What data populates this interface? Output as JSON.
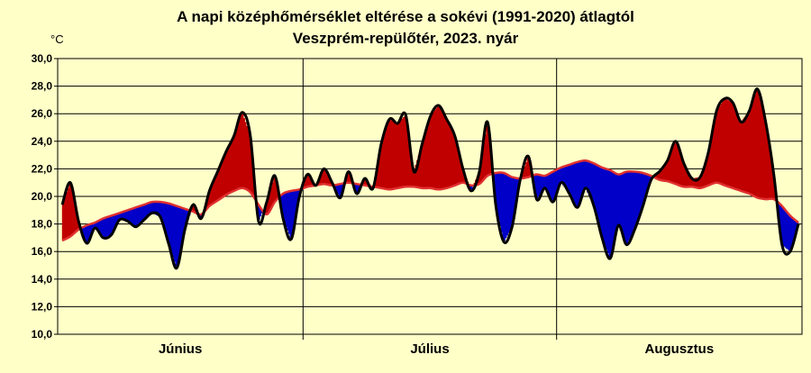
{
  "chart_data": {
    "type": "line",
    "title": "A napi középhőmérséklet eltérése a sokévi (1991-2020) átlagtól",
    "subtitle": "Veszprém-repülőtér,  2023. nyár",
    "ylabel": "°C",
    "ylim": [
      10,
      30
    ],
    "yticks": [
      "10,0",
      "12,0",
      "14,0",
      "16,0",
      "18,0",
      "20,0",
      "22,0",
      "24,0",
      "26,0",
      "28,0",
      "30,0"
    ],
    "months": [
      "Június",
      "Július",
      "Augusztus"
    ],
    "grid": true,
    "series": [
      {
        "values": [
          19.4,
          21.0,
          18.2,
          16.6,
          17.7,
          17.0,
          17.2,
          18.3,
          18.2,
          17.8,
          18.3,
          18.8,
          18.5,
          16.6,
          14.8,
          17.6,
          19.4,
          18.4,
          20.4,
          21.8,
          23.2,
          24.4,
          26.1,
          24.4,
          18.2,
          19.6,
          21.5,
          18.4,
          16.9,
          20.0,
          21.6,
          20.8,
          22.0,
          21.0,
          19.9,
          21.8,
          20.2,
          21.3,
          20.6,
          23.8,
          25.6,
          25.3,
          25.9,
          21.8,
          23.8,
          25.8,
          26.6,
          25.6,
          24.4,
          22.0,
          20.4,
          21.8,
          25.4,
          19.4,
          16.7,
          17.8,
          21.2,
          22.9,
          19.8,
          20.6,
          19.6,
          21.0,
          20.2,
          19.2,
          20.6,
          19.3,
          17.0,
          15.5,
          17.9,
          16.5,
          17.6,
          19.3,
          21.2,
          21.8,
          22.6,
          24.0,
          22.4,
          21.3,
          21.4,
          23.2,
          26.2,
          27.1,
          26.8,
          25.4,
          26.2,
          27.8,
          25.4,
          21.6,
          16.5,
          16.0,
          18.0
        ]
      },
      {
        "values": [
          16.8,
          17.1,
          17.6,
          17.9,
          18.1,
          18.4,
          18.6,
          18.8,
          19.0,
          19.2,
          19.4,
          19.6,
          19.6,
          19.5,
          19.3,
          19.1,
          18.9,
          18.7,
          19.3,
          19.7,
          20.1,
          20.4,
          20.6,
          20.3,
          19.4,
          18.7,
          19.6,
          20.2,
          20.4,
          20.5,
          20.7,
          20.8,
          20.9,
          20.8,
          20.9,
          21.0,
          20.9,
          20.8,
          20.7,
          20.6,
          20.5,
          20.6,
          20.7,
          20.7,
          20.6,
          20.6,
          20.5,
          20.6,
          20.8,
          21.0,
          20.8,
          20.9,
          21.5,
          21.7,
          21.7,
          21.4,
          21.3,
          21.4,
          21.6,
          21.5,
          21.8,
          22.1,
          22.3,
          22.5,
          22.6,
          22.4,
          22.1,
          21.9,
          21.6,
          21.8,
          21.8,
          21.7,
          21.5,
          21.2,
          21.1,
          20.9,
          20.7,
          20.7,
          20.6,
          20.8,
          21.0,
          20.8,
          20.6,
          20.4,
          20.2,
          19.9,
          19.8,
          19.8,
          19.3,
          18.6,
          18.1
        ]
      }
    ],
    "colors": {
      "above": "#c00000",
      "below": "#0000c8",
      "mean_line": "#e03030",
      "daily_line": "#000000",
      "background": "#ffffc8",
      "grid": "#000000"
    }
  }
}
